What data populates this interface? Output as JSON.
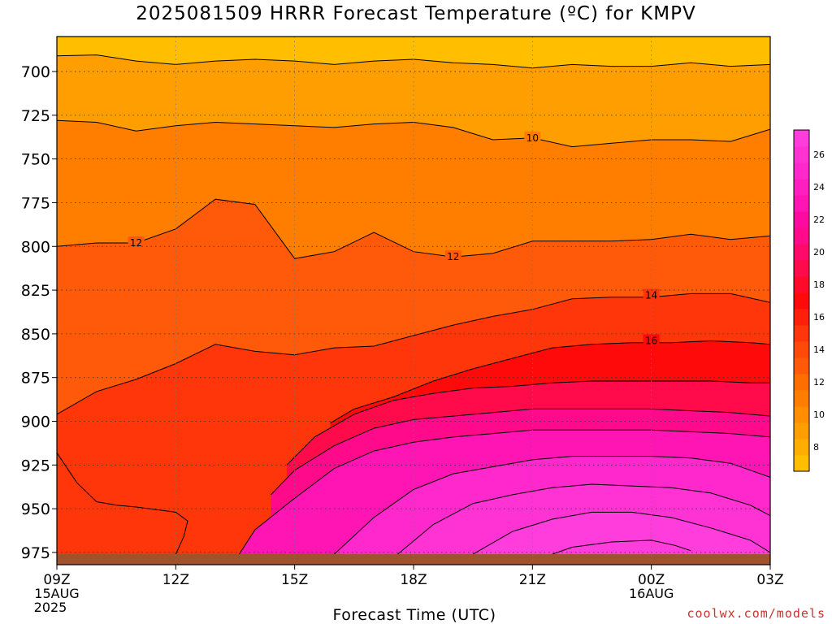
{
  "page": {
    "title": "2025081509 HRRR Forecast Temperature (ºC) for KMPV",
    "credit": "coolwx.com/models"
  },
  "chart_data": {
    "type": "contour",
    "title": "2025081509 HRRR Forecast Temperature (ºC) for KMPV",
    "xlabel": "Forecast Time (UTC)",
    "ylabel": "",
    "x_ticks": [
      {
        "hour": 0,
        "label": "09Z",
        "sub": "15AUG",
        "sub2": "2025"
      },
      {
        "hour": 3,
        "label": "12Z",
        "sub": "",
        "sub2": ""
      },
      {
        "hour": 6,
        "label": "15Z",
        "sub": "",
        "sub2": ""
      },
      {
        "hour": 9,
        "label": "18Z",
        "sub": "",
        "sub2": ""
      },
      {
        "hour": 12,
        "label": "21Z",
        "sub": "",
        "sub2": ""
      },
      {
        "hour": 15,
        "label": "00Z",
        "sub": "16AUG",
        "sub2": ""
      },
      {
        "hour": 18,
        "label": "03Z",
        "sub": "",
        "sub2": ""
      }
    ],
    "xlim": [
      0,
      18
    ],
    "y_ticks": [
      700,
      725,
      750,
      775,
      800,
      825,
      850,
      875,
      900,
      925,
      950,
      975
    ],
    "ylim": [
      680,
      982
    ],
    "ground_level_hpa": 976,
    "grid": true,
    "colorbar": {
      "ticks": [
        8,
        10,
        12,
        14,
        16,
        18,
        20,
        22,
        24,
        26
      ],
      "levels": [
        7,
        8,
        9,
        10,
        11,
        12,
        13,
        14,
        15,
        16,
        17,
        18,
        19,
        20,
        21,
        22,
        23,
        24,
        25,
        26,
        27,
        28
      ],
      "colors": [
        "#ffbf00",
        "#ffae00",
        "#ff9e00",
        "#ff8e00",
        "#ff7e00",
        "#ff6e00",
        "#ff5a0a",
        "#ff4a0a",
        "#ff360a",
        "#ff200a",
        "#ff0a0a",
        "#ff0a2a",
        "#ff0a4a",
        "#ff0a6a",
        "#ff0a8a",
        "#ff0aa0",
        "#ff14b4",
        "#ff1ec0",
        "#ff28cc",
        "#ff32d4",
        "#ff3cdc"
      ]
    },
    "series": [
      {
        "temp": 8,
        "label": "",
        "points": [
          [
            0,
            691
          ],
          [
            1,
            690.5
          ],
          [
            2,
            694
          ],
          [
            3,
            696
          ],
          [
            4,
            694
          ],
          [
            5,
            693
          ],
          [
            6,
            694
          ],
          [
            7,
            696
          ],
          [
            8,
            694
          ],
          [
            9,
            693
          ],
          [
            10,
            695
          ],
          [
            11,
            696
          ],
          [
            12,
            698
          ],
          [
            13,
            696
          ],
          [
            14,
            697
          ],
          [
            15,
            697
          ],
          [
            16,
            695
          ],
          [
            17,
            697
          ],
          [
            18,
            696
          ]
        ]
      },
      {
        "temp": 10,
        "label": "10",
        "labelAt": [
          12,
          738
        ],
        "points": [
          [
            0,
            728
          ],
          [
            1,
            729
          ],
          [
            2,
            734
          ],
          [
            3,
            731
          ],
          [
            4,
            729
          ],
          [
            5,
            730
          ],
          [
            6,
            731
          ],
          [
            7,
            732
          ],
          [
            8,
            730
          ],
          [
            9,
            729
          ],
          [
            10,
            732
          ],
          [
            11,
            739
          ],
          [
            12,
            738
          ],
          [
            13,
            743
          ],
          [
            14,
            741
          ],
          [
            15,
            739
          ],
          [
            16,
            739
          ],
          [
            17,
            740
          ],
          [
            18,
            733
          ]
        ]
      },
      {
        "temp": 12,
        "label": "12",
        "labelAt": [
          2,
          798
        ],
        "labelAt2": [
          10,
          806
        ],
        "points": [
          [
            0,
            800
          ],
          [
            1,
            798
          ],
          [
            2,
            798
          ],
          [
            3,
            790
          ],
          [
            4,
            773
          ],
          [
            5,
            776
          ],
          [
            6,
            807
          ],
          [
            7,
            803
          ],
          [
            8,
            792
          ],
          [
            9,
            803
          ],
          [
            10,
            806
          ],
          [
            11,
            804
          ],
          [
            12,
            797
          ],
          [
            13,
            797
          ],
          [
            14,
            797
          ],
          [
            15,
            796
          ],
          [
            16,
            793
          ],
          [
            17,
            796
          ],
          [
            18,
            794
          ]
        ]
      },
      {
        "temp": 14,
        "label": "14",
        "labelAt": [
          15,
          828
        ],
        "points": [
          [
            0,
            896
          ],
          [
            1,
            883
          ],
          [
            2,
            876
          ],
          [
            3,
            867
          ],
          [
            4,
            856
          ],
          [
            5,
            860
          ],
          [
            6,
            862
          ],
          [
            7,
            858
          ],
          [
            8,
            857
          ],
          [
            9,
            851
          ],
          [
            10,
            845
          ],
          [
            11,
            840
          ],
          [
            12,
            836
          ],
          [
            13,
            830
          ],
          [
            14,
            829
          ],
          [
            15,
            829
          ],
          [
            16,
            827
          ],
          [
            17,
            827
          ],
          [
            18,
            832
          ]
        ]
      },
      {
        "temp": 16,
        "label": "16",
        "labelAt": [
          15,
          854
        ],
        "points": [
          [
            6.9,
            901
          ],
          [
            7.5,
            893
          ],
          [
            8.5,
            886
          ],
          [
            9.5,
            877
          ],
          [
            10.5,
            870
          ],
          [
            11.5,
            864
          ],
          [
            12.5,
            858
          ],
          [
            13.5,
            856
          ],
          [
            14.5,
            855
          ],
          [
            15.5,
            855
          ],
          [
            16.5,
            854
          ],
          [
            17.5,
            855
          ],
          [
            18,
            856
          ]
        ]
      },
      {
        "temp": 18,
        "label": "",
        "points": [
          [
            5.8,
            925
          ],
          [
            6.5,
            909
          ],
          [
            7.5,
            896
          ],
          [
            8.5,
            888
          ],
          [
            9.5,
            884
          ],
          [
            10.5,
            881
          ],
          [
            11.5,
            880
          ],
          [
            12.5,
            878
          ],
          [
            13.5,
            877
          ],
          [
            14.5,
            877
          ],
          [
            15.5,
            877
          ],
          [
            16.5,
            877
          ],
          [
            17.5,
            878
          ],
          [
            18,
            878
          ]
        ]
      },
      {
        "temp": 20,
        "label": "",
        "points": [
          [
            5.4,
            942
          ],
          [
            6,
            928
          ],
          [
            7,
            914
          ],
          [
            8,
            904
          ],
          [
            9,
            899
          ],
          [
            10,
            897
          ],
          [
            11,
            895
          ],
          [
            12,
            893
          ],
          [
            13,
            893
          ],
          [
            14,
            893
          ],
          [
            15,
            893
          ],
          [
            16,
            894
          ],
          [
            17,
            895
          ],
          [
            18,
            897
          ]
        ]
      },
      {
        "temp": 22,
        "label": "",
        "points": [
          [
            4.6,
            976
          ],
          [
            5,
            962
          ],
          [
            6,
            944
          ],
          [
            7,
            927
          ],
          [
            8,
            917
          ],
          [
            9,
            912
          ],
          [
            10,
            909
          ],
          [
            11,
            907
          ],
          [
            12,
            905
          ],
          [
            13,
            905
          ],
          [
            14,
            905
          ],
          [
            15,
            905
          ],
          [
            16,
            906
          ],
          [
            17,
            907
          ],
          [
            18,
            909
          ]
        ]
      },
      {
        "temp": 24,
        "label": "",
        "points": [
          [
            7,
            976
          ],
          [
            8,
            955
          ],
          [
            9,
            939
          ],
          [
            10,
            930
          ],
          [
            11,
            926
          ],
          [
            12,
            922
          ],
          [
            13,
            920
          ],
          [
            14,
            920
          ],
          [
            15,
            920
          ],
          [
            16,
            921
          ],
          [
            17,
            924
          ],
          [
            18,
            932
          ]
        ]
      },
      {
        "temp": 25,
        "label": "",
        "points": [
          [
            8.6,
            976
          ],
          [
            9.5,
            959
          ],
          [
            10.5,
            947
          ],
          [
            11.5,
            942
          ],
          [
            12.5,
            938
          ],
          [
            13.5,
            936
          ],
          [
            14.5,
            937
          ],
          [
            15.5,
            938
          ],
          [
            16.5,
            941
          ],
          [
            17.5,
            948
          ],
          [
            18,
            954
          ]
        ]
      },
      {
        "temp": 26,
        "label": "",
        "points": [
          [
            10.5,
            976
          ],
          [
            11.5,
            963
          ],
          [
            12.5,
            956
          ],
          [
            13.5,
            952
          ],
          [
            14.5,
            952
          ],
          [
            15.5,
            955
          ],
          [
            16.5,
            961
          ],
          [
            17.5,
            968
          ],
          [
            18,
            975
          ]
        ]
      },
      {
        "temp": 27,
        "label": "",
        "points": [
          [
            12.5,
            976
          ],
          [
            13,
            972
          ],
          [
            14,
            969
          ],
          [
            15,
            968
          ],
          [
            15.6,
            971
          ],
          [
            16,
            974
          ]
        ]
      },
      {
        "temp": 14,
        "label": "",
        "points": [
          [
            0,
            918
          ],
          [
            0.5,
            935
          ],
          [
            1,
            946
          ],
          [
            1.5,
            948
          ],
          [
            2,
            949
          ],
          [
            3,
            952
          ],
          [
            3.3,
            957
          ],
          [
            3.2,
            966
          ],
          [
            3,
            976
          ]
        ]
      }
    ]
  }
}
